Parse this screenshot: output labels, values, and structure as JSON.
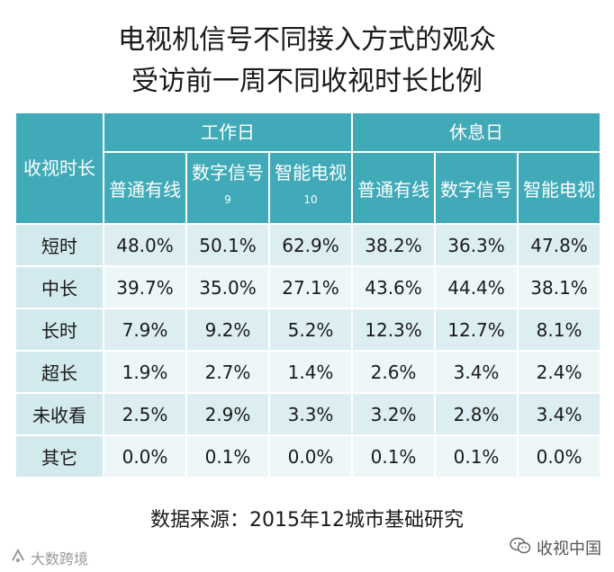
{
  "title_line1": "电视机信号不同接入方式的观众",
  "title_line2": "受访前一周不同收视时长比例",
  "chart_data": {
    "type": "table",
    "row_header": "收视时长",
    "groups": [
      {
        "label": "工作日",
        "columns": [
          {
            "label": "普通有线",
            "note": ""
          },
          {
            "label": "数字信号",
            "note": "9"
          },
          {
            "label": "智能电视",
            "note": "10"
          }
        ]
      },
      {
        "label": "休息日",
        "columns": [
          {
            "label": "普通有线",
            "note": ""
          },
          {
            "label": "数字信号",
            "note": ""
          },
          {
            "label": "智能电视",
            "note": ""
          }
        ]
      }
    ],
    "rows": [
      {
        "label": "短时",
        "values": [
          "48.0%",
          "50.1%",
          "62.9%",
          "38.2%",
          "36.3%",
          "47.8%"
        ]
      },
      {
        "label": "中长",
        "values": [
          "39.7%",
          "35.0%",
          "27.1%",
          "43.6%",
          "44.4%",
          "38.1%"
        ]
      },
      {
        "label": "长时",
        "values": [
          "7.9%",
          "9.2%",
          "5.2%",
          "12.3%",
          "12.7%",
          "8.1%"
        ]
      },
      {
        "label": "超长",
        "values": [
          "1.9%",
          "2.7%",
          "1.4%",
          "2.6%",
          "3.4%",
          "2.4%"
        ]
      },
      {
        "label": "未收看",
        "values": [
          "2.5%",
          "2.9%",
          "3.3%",
          "3.2%",
          "2.8%",
          "3.4%"
        ]
      },
      {
        "label": "其它",
        "values": [
          "0.0%",
          "0.1%",
          "0.0%",
          "0.1%",
          "0.1%",
          "0.0%"
        ]
      }
    ]
  },
  "source": "数据来源：2015年12城市基础研究",
  "watermark_left": "大数跨境",
  "watermark_right": "收视中国",
  "colors": {
    "header": "#41aab8",
    "row_odd": "#dceef1",
    "row_even": "#eef7f8"
  }
}
